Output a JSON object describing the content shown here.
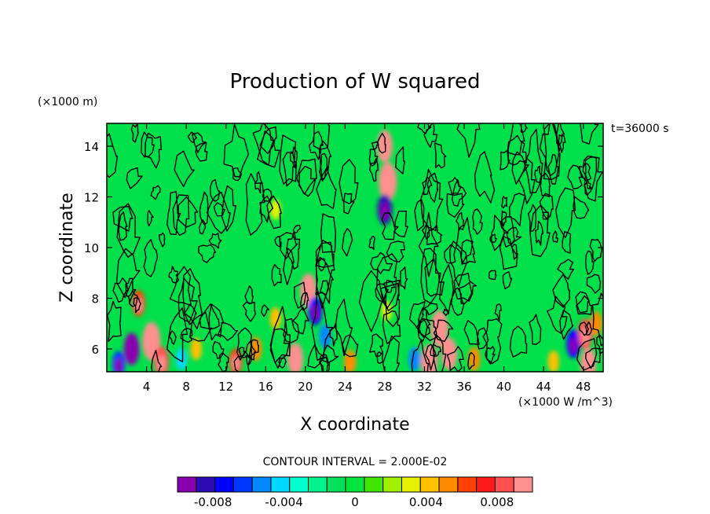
{
  "chart_data": {
    "type": "heatmap",
    "title": "Production of W squared",
    "xlabel": "X coordinate",
    "ylabel": "Z coordinate",
    "x_scale_note": "(×1000 W /m^3)",
    "y_scale_note": "(×1000 m)",
    "time_label": "t=36000 s",
    "contour_interval_label": "CONTOUR INTERVAL = 2.000E-02",
    "xlim": [
      0,
      50
    ],
    "ylim": [
      5.1,
      14.9
    ],
    "x_ticks": [
      "4",
      "8",
      "12",
      "16",
      "20",
      "24",
      "28",
      "32",
      "36",
      "40",
      "44",
      "48"
    ],
    "x_tick_values": [
      4,
      8,
      12,
      16,
      20,
      24,
      28,
      32,
      36,
      40,
      44,
      48
    ],
    "y_ticks": [
      "6",
      "8",
      "10",
      "12",
      "14"
    ],
    "y_tick_values": [
      6,
      8,
      10,
      12,
      14
    ],
    "colorbar": {
      "range": [
        -0.01,
        0.01
      ],
      "colors": [
        "#8a00b0",
        "#2b0cb4",
        "#0000ff",
        "#0037ff",
        "#0088ff",
        "#00d8ff",
        "#00ffcc",
        "#00f28c",
        "#00e05a",
        "#00e63c",
        "#40e600",
        "#a0f000",
        "#e6f000",
        "#ffc000",
        "#ff8c00",
        "#ff4000",
        "#ff1a1a",
        "#ff5050",
        "#ff9090"
      ],
      "tick_labels": [
        "-0.008",
        "-0.004",
        "0",
        "0.004",
        "0.008"
      ],
      "tick_values": [
        -0.008,
        -0.004,
        0,
        0.004,
        0.008
      ]
    },
    "background_color": "#00e04a",
    "features": [
      {
        "x": 4.5,
        "z": 6.3,
        "value": 0.012
      },
      {
        "x": 2.5,
        "z": 6.0,
        "value": -0.009
      },
      {
        "x": 3.2,
        "z": 7.8,
        "value": 0.006
      },
      {
        "x": 5.5,
        "z": 5.5,
        "value": 0.008
      },
      {
        "x": 1.2,
        "z": 5.4,
        "value": -0.006
      },
      {
        "x": 7.5,
        "z": 5.6,
        "value": -0.004
      },
      {
        "x": 9.0,
        "z": 6.0,
        "value": 0.004
      },
      {
        "x": 13.0,
        "z": 5.5,
        "value": 0.006
      },
      {
        "x": 15.0,
        "z": 6.0,
        "value": 0.005
      },
      {
        "x": 17.0,
        "z": 7.2,
        "value": 0.004
      },
      {
        "x": 17.0,
        "z": 11.5,
        "value": 0.003
      },
      {
        "x": 19.0,
        "z": 5.6,
        "value": 0.009
      },
      {
        "x": 20.3,
        "z": 8.3,
        "value": 0.01
      },
      {
        "x": 21.0,
        "z": 7.5,
        "value": -0.007
      },
      {
        "x": 22.0,
        "z": 6.5,
        "value": -0.005
      },
      {
        "x": 24.5,
        "z": 5.5,
        "value": 0.005
      },
      {
        "x": 28.0,
        "z": 14.0,
        "value": 0.009
      },
      {
        "x": 28.3,
        "z": 12.6,
        "value": 0.012
      },
      {
        "x": 28.0,
        "z": 11.5,
        "value": -0.008
      },
      {
        "x": 28.2,
        "z": 7.5,
        "value": 0.003
      },
      {
        "x": 33.5,
        "z": 6.8,
        "value": 0.011
      },
      {
        "x": 32.5,
        "z": 5.5,
        "value": 0.01
      },
      {
        "x": 34.5,
        "z": 5.8,
        "value": 0.009
      },
      {
        "x": 31.0,
        "z": 5.6,
        "value": -0.005
      },
      {
        "x": 37.0,
        "z": 5.6,
        "value": 0.005
      },
      {
        "x": 45.0,
        "z": 5.5,
        "value": 0.004
      },
      {
        "x": 47.0,
        "z": 6.2,
        "value": -0.007
      },
      {
        "x": 48.2,
        "z": 6.6,
        "value": 0.008
      },
      {
        "x": 48.5,
        "z": 5.4,
        "value": 0.009
      },
      {
        "x": 49.3,
        "z": 7.0,
        "value": 0.005
      }
    ]
  }
}
